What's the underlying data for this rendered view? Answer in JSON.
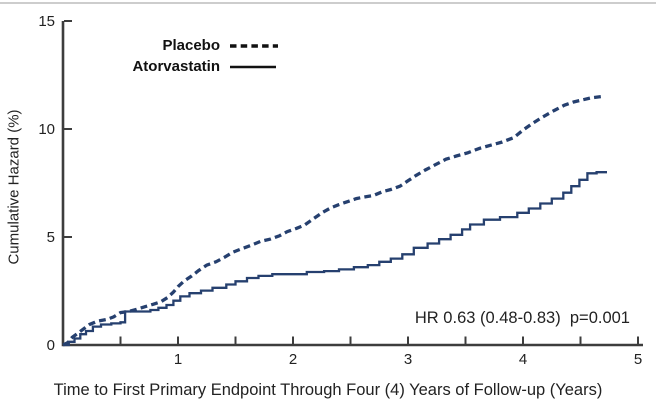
{
  "chart_data": {
    "type": "line",
    "title": "",
    "xlabel": "Time to First Primary Endpoint Through Four (4) Years of Follow-up (Years)",
    "ylabel": "Cumulative Hazard (%)",
    "annotation": "HR 0.63 (0.48-0.83)  p=0.001",
    "xlim": [
      0,
      5
    ],
    "ylim": [
      0,
      15
    ],
    "xticks_major": [
      1,
      2,
      3,
      4,
      5
    ],
    "xticks_minor": [
      0.5,
      1.5,
      2.5,
      3.5,
      4.5
    ],
    "yticks": [
      0,
      5,
      10,
      15
    ],
    "grid": false,
    "legend_position": "top-left-inside",
    "colors": {
      "curve": "#26406f",
      "axis": "#3d3d3d",
      "legend_sample": "#111111"
    },
    "legend": [
      {
        "name": "Placebo",
        "style": "dashed"
      },
      {
        "name": "Atorvastatin",
        "style": "solid"
      }
    ],
    "series": [
      {
        "name": "Placebo",
        "style": "dashed",
        "interp": "linear",
        "color": "#26406f",
        "points": [
          [
            0,
            0
          ],
          [
            0.04,
            0.1
          ],
          [
            0.08,
            0.35
          ],
          [
            0.13,
            0.55
          ],
          [
            0.18,
            0.75
          ],
          [
            0.23,
            0.95
          ],
          [
            0.3,
            1.1
          ],
          [
            0.38,
            1.18
          ],
          [
            0.44,
            1.3
          ],
          [
            0.5,
            1.5
          ],
          [
            0.57,
            1.55
          ],
          [
            0.64,
            1.65
          ],
          [
            0.71,
            1.77
          ],
          [
            0.78,
            1.88
          ],
          [
            0.85,
            2.0
          ],
          [
            0.91,
            2.2
          ],
          [
            0.96,
            2.45
          ],
          [
            1.0,
            2.7
          ],
          [
            1.05,
            2.95
          ],
          [
            1.12,
            3.2
          ],
          [
            1.18,
            3.45
          ],
          [
            1.25,
            3.7
          ],
          [
            1.33,
            3.85
          ],
          [
            1.4,
            4.05
          ],
          [
            1.48,
            4.3
          ],
          [
            1.55,
            4.45
          ],
          [
            1.63,
            4.6
          ],
          [
            1.72,
            4.8
          ],
          [
            1.8,
            4.9
          ],
          [
            1.88,
            5.05
          ],
          [
            1.95,
            5.25
          ],
          [
            2.03,
            5.4
          ],
          [
            2.1,
            5.55
          ],
          [
            2.18,
            5.85
          ],
          [
            2.26,
            6.15
          ],
          [
            2.33,
            6.35
          ],
          [
            2.4,
            6.5
          ],
          [
            2.48,
            6.65
          ],
          [
            2.55,
            6.78
          ],
          [
            2.62,
            6.85
          ],
          [
            2.7,
            6.92
          ],
          [
            2.78,
            7.1
          ],
          [
            2.85,
            7.2
          ],
          [
            2.93,
            7.35
          ],
          [
            3.0,
            7.6
          ],
          [
            3.07,
            7.85
          ],
          [
            3.15,
            8.1
          ],
          [
            3.24,
            8.35
          ],
          [
            3.33,
            8.6
          ],
          [
            3.42,
            8.75
          ],
          [
            3.52,
            8.9
          ],
          [
            3.62,
            9.1
          ],
          [
            3.72,
            9.25
          ],
          [
            3.82,
            9.4
          ],
          [
            3.92,
            9.6
          ],
          [
            4.0,
            9.95
          ],
          [
            4.08,
            10.25
          ],
          [
            4.17,
            10.55
          ],
          [
            4.27,
            10.85
          ],
          [
            4.36,
            11.1
          ],
          [
            4.44,
            11.25
          ],
          [
            4.52,
            11.35
          ],
          [
            4.6,
            11.45
          ],
          [
            4.68,
            11.5
          ]
        ]
      },
      {
        "name": "Atorvastatin",
        "style": "solid",
        "interp": "step-after",
        "color": "#26406f",
        "points": [
          [
            0,
            0
          ],
          [
            0.05,
            0.15
          ],
          [
            0.1,
            0.3
          ],
          [
            0.15,
            0.5
          ],
          [
            0.2,
            0.65
          ],
          [
            0.26,
            0.85
          ],
          [
            0.33,
            0.95
          ],
          [
            0.42,
            1.0
          ],
          [
            0.5,
            1.05
          ],
          [
            0.54,
            1.55
          ],
          [
            0.76,
            1.62
          ],
          [
            0.83,
            1.72
          ],
          [
            0.9,
            1.85
          ],
          [
            0.96,
            2.05
          ],
          [
            1.02,
            2.25
          ],
          [
            1.1,
            2.4
          ],
          [
            1.2,
            2.52
          ],
          [
            1.3,
            2.65
          ],
          [
            1.42,
            2.8
          ],
          [
            1.5,
            2.95
          ],
          [
            1.6,
            3.1
          ],
          [
            1.7,
            3.2
          ],
          [
            1.82,
            3.28
          ],
          [
            2.12,
            3.38
          ],
          [
            2.27,
            3.42
          ],
          [
            2.4,
            3.5
          ],
          [
            2.53,
            3.6
          ],
          [
            2.65,
            3.7
          ],
          [
            2.75,
            3.85
          ],
          [
            2.85,
            4.0
          ],
          [
            2.95,
            4.2
          ],
          [
            3.05,
            4.5
          ],
          [
            3.17,
            4.7
          ],
          [
            3.27,
            4.9
          ],
          [
            3.37,
            5.1
          ],
          [
            3.47,
            5.35
          ],
          [
            3.54,
            5.58
          ],
          [
            3.66,
            5.8
          ],
          [
            3.8,
            5.92
          ],
          [
            3.95,
            6.12
          ],
          [
            4.05,
            6.32
          ],
          [
            4.15,
            6.55
          ],
          [
            4.25,
            6.78
          ],
          [
            4.35,
            7.05
          ],
          [
            4.42,
            7.35
          ],
          [
            4.49,
            7.65
          ],
          [
            4.56,
            7.95
          ],
          [
            4.64,
            8.0
          ],
          [
            4.73,
            8.0
          ]
        ]
      }
    ]
  }
}
